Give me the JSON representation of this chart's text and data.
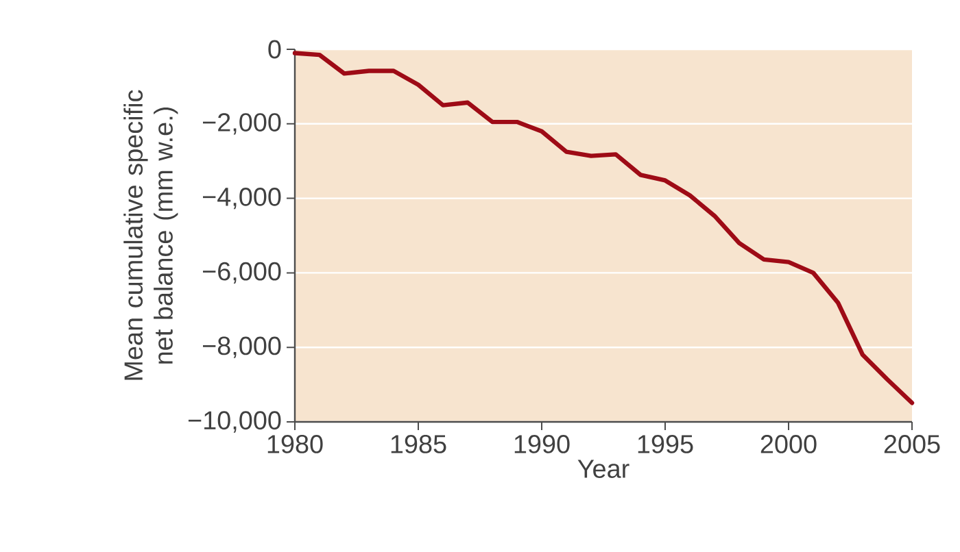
{
  "chart_data": {
    "type": "line",
    "xlabel": "Year",
    "ylabel": "Mean cumulative specific net balance (mm w.e.)",
    "x": [
      1980,
      1981,
      1982,
      1983,
      1984,
      1985,
      1986,
      1987,
      1988,
      1989,
      1990,
      1991,
      1992,
      1993,
      1994,
      1995,
      1996,
      1997,
      1998,
      1999,
      2000,
      2001,
      2002,
      2003,
      2004,
      2005
    ],
    "values": [
      -100,
      -150,
      -650,
      -580,
      -580,
      -950,
      -1500,
      -1430,
      -1950,
      -1950,
      -2200,
      -2750,
      -2860,
      -2820,
      -3370,
      -3520,
      -3920,
      -4470,
      -5200,
      -5640,
      -5710,
      -6000,
      -6800,
      -8200,
      -8860,
      -9490
    ],
    "color": "#9e0b16",
    "xlim": [
      1980,
      2005
    ],
    "ylim": [
      -10000,
      0
    ],
    "xticks": [
      1980,
      1985,
      1990,
      1995,
      2000,
      2005
    ],
    "yticks": [
      {
        "value": -10000,
        "label": "−10,000"
      },
      {
        "value": -8000,
        "label": "−8,000"
      },
      {
        "value": -6000,
        "label": "−6,000"
      },
      {
        "value": -4000,
        "label": "−4,000"
      },
      {
        "value": -2000,
        "label": "−2,000"
      },
      {
        "value": 0,
        "label": "0"
      }
    ],
    "grid": "y"
  }
}
